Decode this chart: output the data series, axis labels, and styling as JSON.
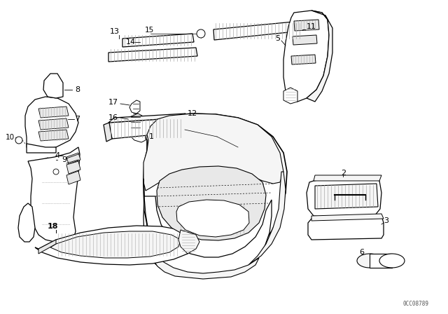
{
  "background_color": "#ffffff",
  "line_color": "#000000",
  "watermark": "0CC08789",
  "fig_width": 6.4,
  "fig_height": 4.48,
  "dpi": 100
}
